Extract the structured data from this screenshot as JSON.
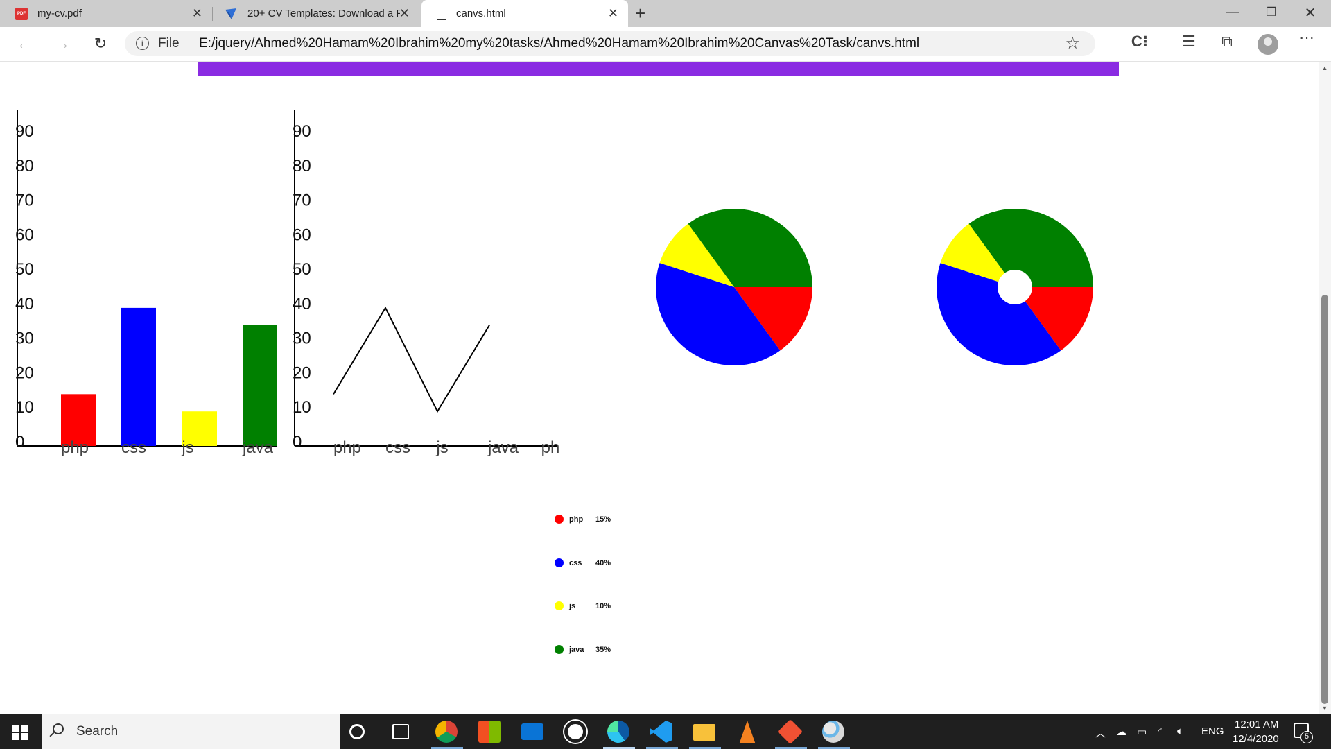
{
  "browser": {
    "tabs": [
      {
        "title": "my-cv.pdf",
        "icon": "pdf-icon",
        "active": false
      },
      {
        "title": "20+ CV Templates: Download a F",
        "icon": "site-icon",
        "active": false
      },
      {
        "title": "canvs.html",
        "icon": "page-icon",
        "active": true
      }
    ],
    "address": {
      "scheme_label": "File",
      "url": "E:/jquery/Ahmed%20Hamam%20Ibrahim%20my%20tasks/Ahmed%20Hamam%20Ibrahim%20Canvas%20Task/canvs.html"
    }
  },
  "page": {
    "header_bar_color": "#8a2be2",
    "bar_chart": {
      "y_ticks": [
        "0",
        "10",
        "20",
        "30",
        "40",
        "50",
        "60",
        "70",
        "80",
        "90"
      ],
      "categories": [
        "php",
        "css",
        "js",
        "java"
      ]
    },
    "line_chart": {
      "y_ticks": [
        "0",
        "10",
        "20",
        "30",
        "40",
        "50",
        "60",
        "70",
        "80",
        "90"
      ],
      "x_labels": [
        "php",
        "css",
        "js",
        "java",
        "ph"
      ]
    },
    "legend": [
      {
        "name": "php",
        "percent": "15%",
        "color": "#ff0000"
      },
      {
        "name": "css",
        "percent": "40%",
        "color": "#0000ff"
      },
      {
        "name": "js",
        "percent": "10%",
        "color": "#ffff00"
      },
      {
        "name": "java",
        "percent": "35%",
        "color": "#008000"
      }
    ]
  },
  "chart_data": [
    {
      "type": "bar",
      "categories": [
        "php",
        "css",
        "js",
        "java"
      ],
      "values": [
        15,
        40,
        10,
        35
      ],
      "colors": [
        "#ff0000",
        "#0000ff",
        "#ffff00",
        "#008000"
      ],
      "ylim": [
        0,
        90
      ],
      "grid": false
    },
    {
      "type": "line",
      "categories": [
        "php",
        "css",
        "js",
        "java"
      ],
      "values": [
        15,
        40,
        10,
        35
      ],
      "color": "#000000",
      "ylim": [
        0,
        90
      ],
      "grid": false
    },
    {
      "type": "pie",
      "categories": [
        "php",
        "css",
        "js",
        "java"
      ],
      "values": [
        15,
        40,
        10,
        35
      ],
      "colors": [
        "#ff0000",
        "#0000ff",
        "#ffff00",
        "#008000"
      ]
    },
    {
      "type": "pie",
      "donut": true,
      "categories": [
        "php",
        "css",
        "js",
        "java"
      ],
      "values": [
        15,
        40,
        10,
        35
      ],
      "colors": [
        "#ff0000",
        "#0000ff",
        "#ffff00",
        "#008000"
      ]
    }
  ],
  "taskbar": {
    "search_placeholder": "Search",
    "language": "ENG",
    "time": "12:01 AM",
    "date": "12/4/2020",
    "notification_count": "5"
  }
}
